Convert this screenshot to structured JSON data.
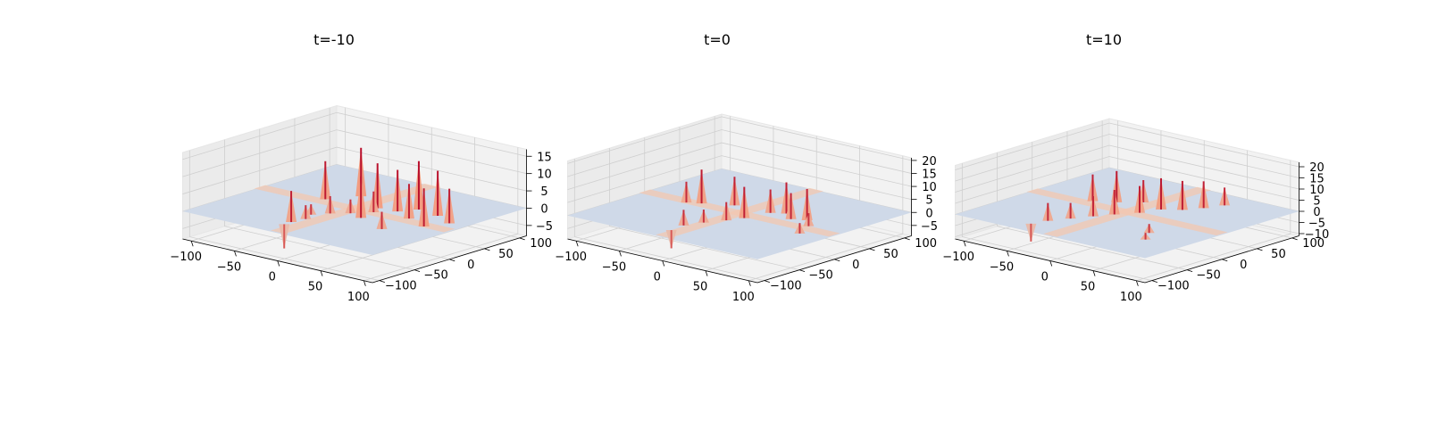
{
  "chart_data": [
    {
      "type": "surface3d",
      "title": "t=-10",
      "xlim": [
        -110,
        110
      ],
      "ylim": [
        -110,
        110
      ],
      "zlim": [
        -8,
        17
      ],
      "xticks": [
        -100,
        -50,
        0,
        50,
        100
      ],
      "yticks": [
        -100,
        -50,
        0,
        50,
        100
      ],
      "zticks": [
        -5,
        0,
        5,
        10,
        15
      ],
      "tick_labels": {
        "x": [
          "−100",
          "−50",
          "0",
          "50",
          "100"
        ],
        "y": [
          "−100",
          "−50",
          "0",
          "50",
          "100"
        ],
        "z": [
          "−5",
          "0",
          "5",
          "10",
          "15"
        ]
      },
      "grid": true,
      "colormap": "coolwarm",
      "peaks": [
        [
          -15,
          -82,
          -7
        ],
        [
          -15,
          -72,
          9
        ],
        [
          -12,
          -55,
          4
        ],
        [
          -18,
          -40,
          3
        ],
        [
          -8,
          -25,
          5
        ],
        [
          5,
          -12,
          4
        ],
        [
          12,
          18,
          13
        ],
        [
          -42,
          10,
          11
        ],
        [
          -25,
          40,
          14
        ],
        [
          22,
          -18,
          12
        ],
        [
          32,
          22,
          12
        ],
        [
          42,
          40,
          14
        ],
        [
          55,
          10,
          10
        ],
        [
          68,
          35,
          13
        ],
        [
          82,
          -2,
          11
        ],
        [
          92,
          22,
          10
        ],
        [
          60,
          -35,
          5
        ],
        [
          18,
          5,
          6
        ]
      ],
      "ridge_band": 8
    },
    {
      "type": "surface3d",
      "title": "t=0",
      "xlim": [
        -110,
        110
      ],
      "ylim": [
        -110,
        110
      ],
      "zlim": [
        -9,
        21
      ],
      "xticks": [
        -100,
        -50,
        0,
        50,
        100
      ],
      "yticks": [
        -100,
        -50,
        0,
        50,
        100
      ],
      "zticks": [
        -5,
        0,
        5,
        10,
        15,
        20
      ],
      "tick_labels": {
        "x": [
          "−100",
          "−50",
          "0",
          "50",
          "100"
        ],
        "y": [
          "−100",
          "−50",
          "0",
          "50",
          "100"
        ],
        "z": [
          "−5",
          "0",
          "5",
          "10",
          "15",
          "20"
        ]
      },
      "grid": true,
      "colormap": "coolwarm",
      "peaks": [
        [
          -10,
          -85,
          -7
        ],
        [
          -12,
          -65,
          6
        ],
        [
          -5,
          -45,
          5
        ],
        [
          5,
          -25,
          7
        ],
        [
          12,
          -8,
          12
        ],
        [
          -48,
          5,
          13
        ],
        [
          -22,
          20,
          11
        ],
        [
          18,
          22,
          9
        ],
        [
          30,
          30,
          12
        ],
        [
          45,
          18,
          10
        ],
        [
          58,
          25,
          12
        ],
        [
          72,
          10,
          5
        ],
        [
          82,
          -15,
          4
        ],
        [
          -60,
          -2,
          8
        ]
      ],
      "ridge_band": 8
    },
    {
      "type": "surface3d",
      "title": "t=10",
      "xlim": [
        -110,
        110
      ],
      "ylim": [
        -110,
        110
      ],
      "zlim": [
        -11,
        22
      ],
      "xticks": [
        -100,
        -50,
        0,
        50,
        100
      ],
      "yticks": [
        -100,
        -50,
        0,
        50,
        100
      ],
      "zticks": [
        -10,
        -5,
        0,
        5,
        10,
        15,
        20
      ],
      "tick_labels": {
        "x": [
          "−100",
          "−50",
          "0",
          "50",
          "100"
        ],
        "y": [
          "−100",
          "−50",
          "0",
          "50",
          "100"
        ],
        "z": [
          "−10",
          "−5",
          "0",
          "5",
          "10",
          "15",
          "20"
        ]
      },
      "grid": true,
      "colormap": "coolwarm",
      "peaks": [
        [
          -40,
          -88,
          -8
        ],
        [
          -35,
          -70,
          8
        ],
        [
          -25,
          -50,
          7
        ],
        [
          -15,
          -30,
          9
        ],
        [
          -5,
          -12,
          11
        ],
        [
          8,
          8,
          12
        ],
        [
          -48,
          10,
          12
        ],
        [
          -30,
          22,
          14
        ],
        [
          -12,
          38,
          10
        ],
        [
          15,
          30,
          14
        ],
        [
          30,
          42,
          13
        ],
        [
          40,
          60,
          12
        ],
        [
          48,
          80,
          8
        ],
        [
          58,
          -40,
          4
        ],
        [
          70,
          -60,
          3
        ]
      ],
      "ridge_band": 8
    }
  ]
}
